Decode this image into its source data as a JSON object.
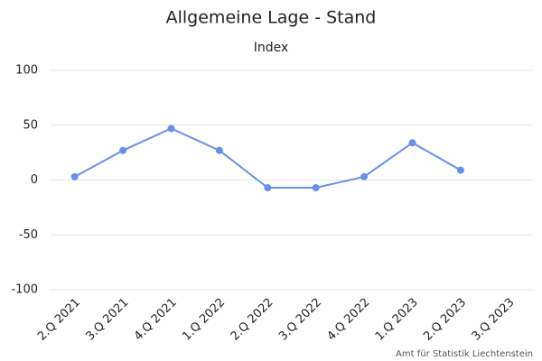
{
  "chart_data": {
    "type": "line",
    "title": "Allgemeine Lage - Stand",
    "subtitle": "Index",
    "categories": [
      "2.Q 2021",
      "3.Q 2021",
      "4.Q 2021",
      "1.Q 2022",
      "2.Q 2022",
      "3.Q 2022",
      "4.Q 2022",
      "1.Q 2023",
      "2.Q 2023",
      "3.Q 2023"
    ],
    "series": [
      {
        "name": "Index",
        "color": "#6690f0",
        "values": [
          3,
          27,
          47,
          27,
          -7,
          -7,
          3,
          34,
          9,
          null
        ]
      }
    ],
    "ylim": [
      -100,
      100
    ],
    "yticks": [
      -100,
      -50,
      0,
      50,
      100
    ],
    "grid": true,
    "credit": "Amt für Statistik Liechtenstein"
  }
}
